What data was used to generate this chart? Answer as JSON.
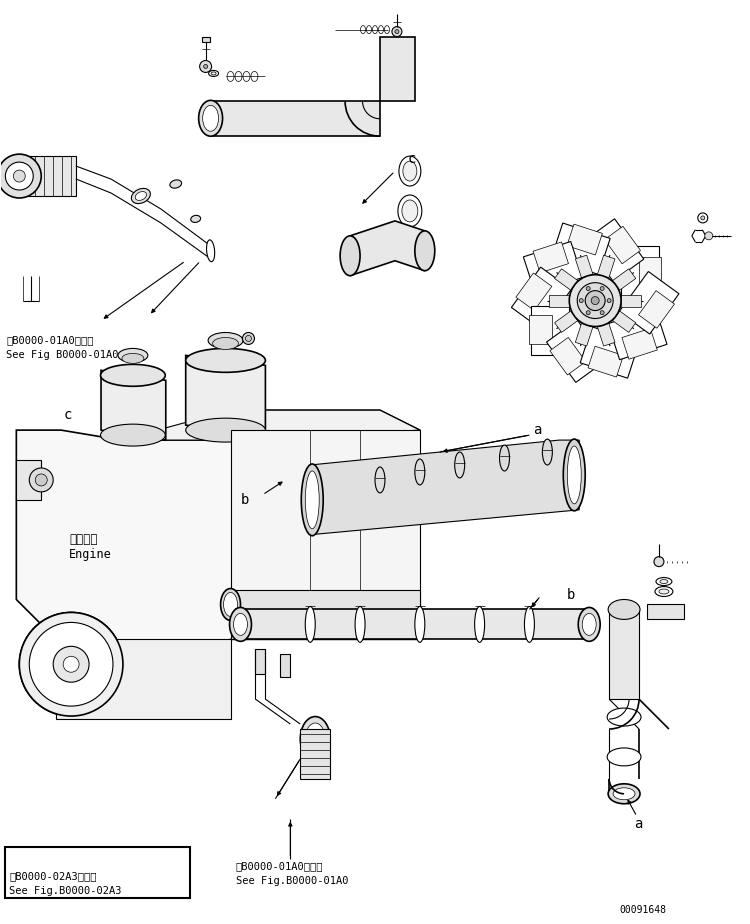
{
  "bg_color": "#ffffff",
  "line_color": "#000000",
  "fig_width": 7.5,
  "fig_height": 9.24,
  "dpi": 100,
  "doc_number": "00091648",
  "ref1_line1": "第B0000-01A0図参照",
  "ref1_line2": "See Fig B0000-01A0",
  "ref2_line1": "第B0000-02A3図参照",
  "ref2_line2": "See Fig.B0000-02A3",
  "ref3_line1": "第B0000-01A0図参照",
  "ref3_line2": "See Fig.B0000-01A0",
  "engine_label1": "エンジン",
  "engine_label2": "Engine",
  "label_a": "a",
  "label_b": "b",
  "label_c": "c"
}
